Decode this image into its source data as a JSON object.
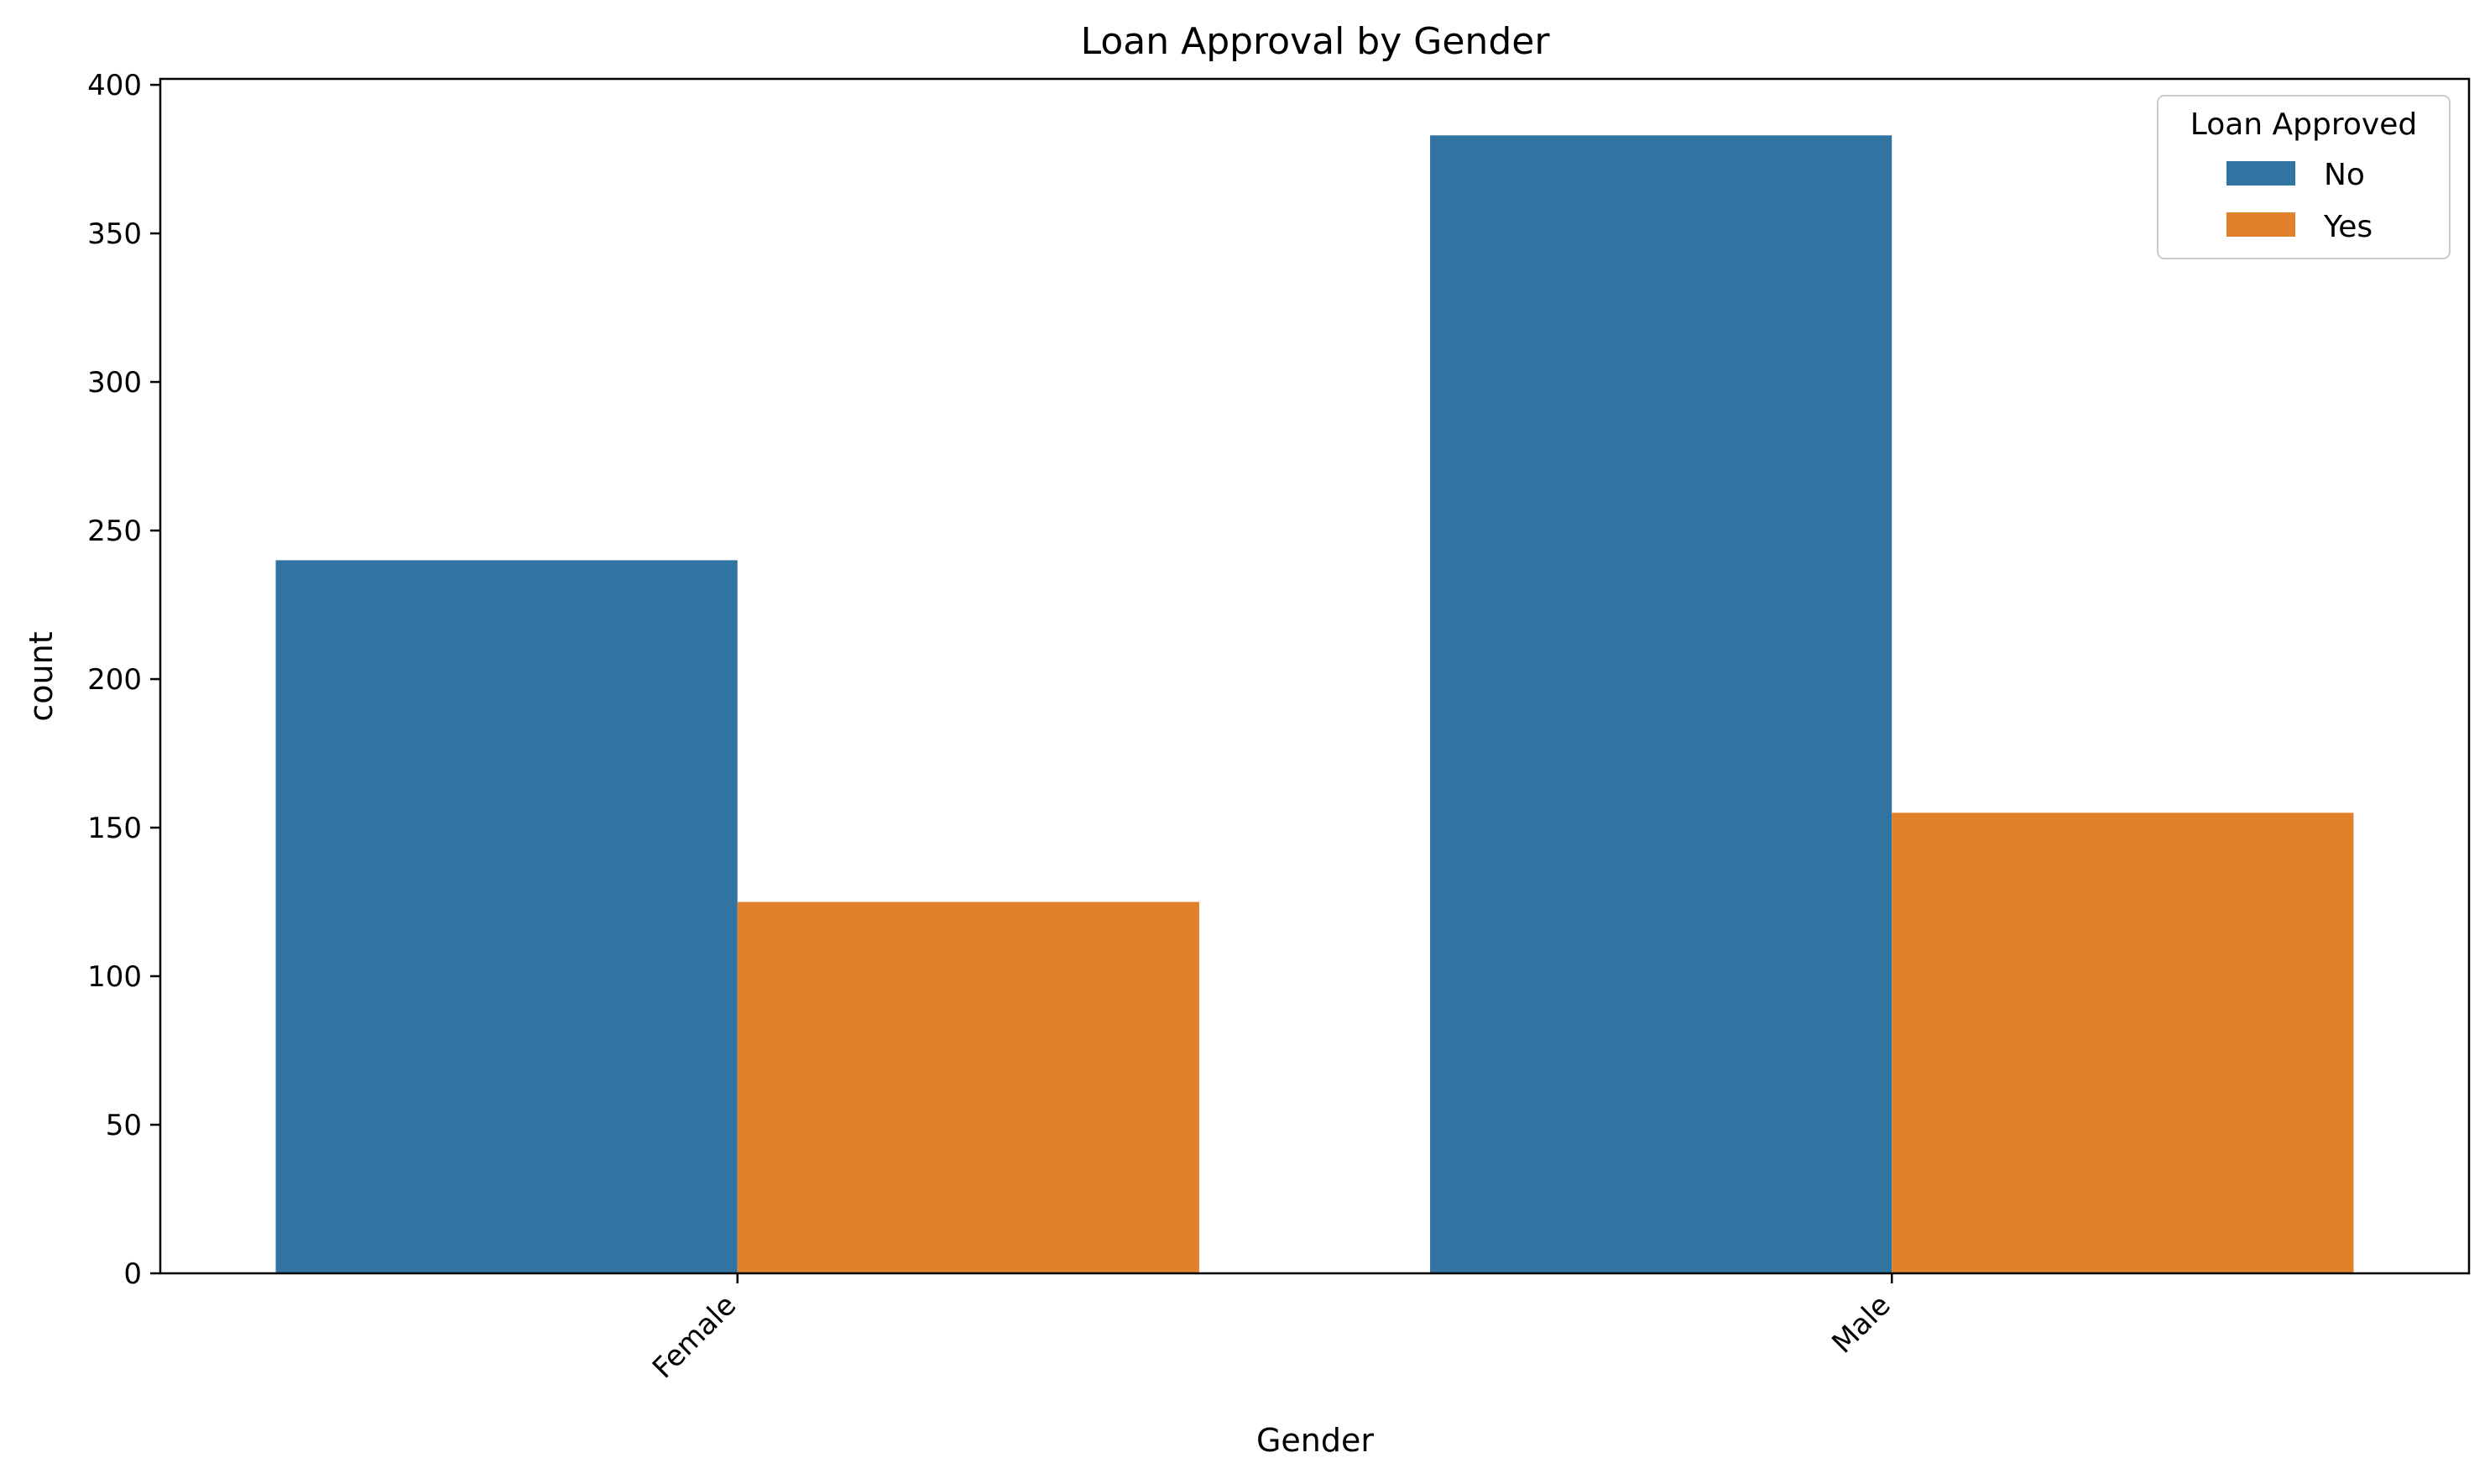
{
  "chart_data": {
    "type": "bar",
    "title": "Loan Approval by Gender",
    "xlabel": "Gender",
    "ylabel": "count",
    "categories": [
      "Female",
      "Male"
    ],
    "series": [
      {
        "name": "No",
        "values": [
          240,
          383
        ],
        "color": "#3274a1"
      },
      {
        "name": "Yes",
        "values": [
          125,
          155
        ],
        "color": "#e1812c"
      }
    ],
    "ylim": [
      0,
      402
    ],
    "yticks": [
      0,
      50,
      100,
      150,
      200,
      250,
      300,
      350,
      400
    ],
    "grid": false,
    "legend": {
      "title": "Loan Approved",
      "placement": "top-right"
    }
  }
}
